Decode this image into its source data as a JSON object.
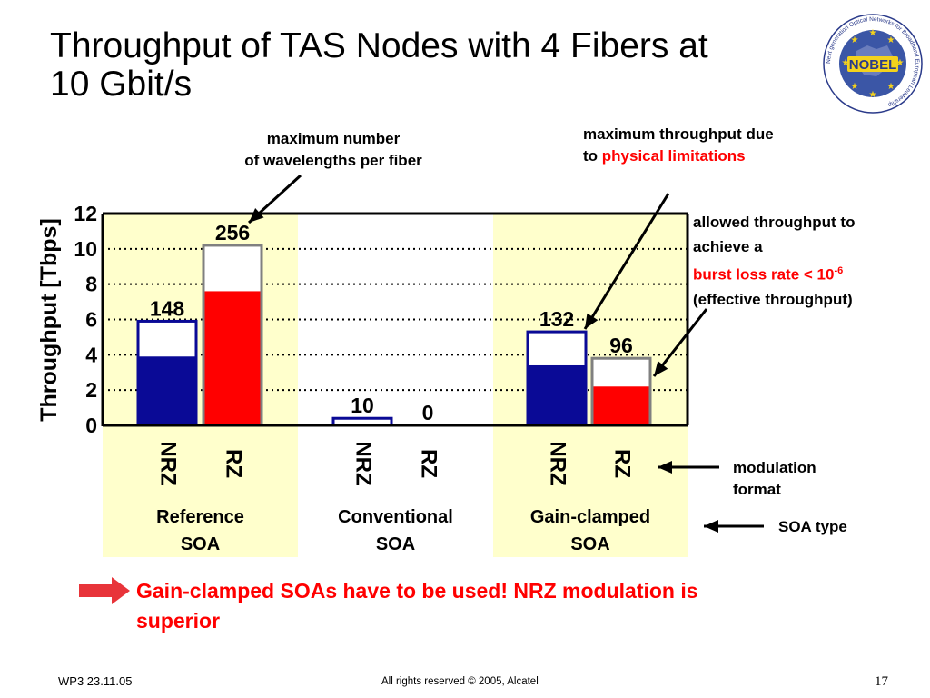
{
  "slide": {
    "title_line1": "Throughput of TAS Nodes with 4 Fibers at",
    "title_line2": "10 Gbit/s",
    "logo_text": "NOBEL",
    "logo_ring_text": "Next generation Optical Networks for Broadband European Leadership",
    "colors": {
      "nrz": "#0a0a96",
      "rz": "#ff0000",
      "band": "#ffffcc",
      "arrow": "#e8343a"
    },
    "conclusion_line1": "Gain-clamped SOAs have to be used! NRZ modulation is",
    "conclusion_line2": "superior"
  },
  "annotations": {
    "max_wavelengths_line1": "maximum number",
    "max_wavelengths_line2": "of wavelengths per fiber",
    "max_throughput_line1": "maximum throughput due",
    "max_throughput_line2_prefix": "to ",
    "max_throughput_line2_red": "physical limitations",
    "allowed_line1": "allowed throughput to",
    "allowed_line2": "achieve a",
    "allowed_line3_red": "burst loss rate < 10",
    "allowed_line3_sup": "-6",
    "allowed_line4": "(effective throughput)",
    "modulation_line1": "modulation",
    "modulation_line2": "format",
    "soa_type": "SOA type"
  },
  "footer": {
    "left": "WP3 23.11.05",
    "center": "All rights reserved © 2005, Alcatel",
    "page": "17"
  },
  "chart_data": {
    "type": "bar",
    "ylabel": "Throughput [Tbps]",
    "ylim": [
      0,
      12
    ],
    "yticks": [
      0,
      2,
      4,
      6,
      8,
      10,
      12
    ],
    "grid": "dotted horizontal",
    "groups": [
      {
        "name": "Reference SOA",
        "line1": "Reference",
        "line2": "SOA",
        "highlighted": true
      },
      {
        "name": "Conventional SOA",
        "line1": "Conventional",
        "line2": "SOA",
        "highlighted": false
      },
      {
        "name": "Gain-clamped SOA",
        "line1": "Gain-clamped",
        "line2": "SOA",
        "highlighted": true
      }
    ],
    "bars": [
      {
        "group": 0,
        "modulation": "NRZ",
        "wavelengths": "148",
        "max_throughput": 5.9,
        "effective_throughput": 3.9
      },
      {
        "group": 0,
        "modulation": "RZ",
        "wavelengths": "256",
        "max_throughput": 10.2,
        "effective_throughput": 7.6
      },
      {
        "group": 1,
        "modulation": "NRZ",
        "wavelengths": "10",
        "max_throughput": 0.4,
        "effective_throughput": 0
      },
      {
        "group": 1,
        "modulation": "RZ",
        "wavelengths": "0",
        "max_throughput": 0,
        "effective_throughput": 0
      },
      {
        "group": 2,
        "modulation": "NRZ",
        "wavelengths": "132",
        "max_throughput": 5.3,
        "effective_throughput": 3.4
      },
      {
        "group": 2,
        "modulation": "RZ",
        "wavelengths": "96",
        "max_throughput": 3.8,
        "effective_throughput": 2.2
      }
    ]
  }
}
